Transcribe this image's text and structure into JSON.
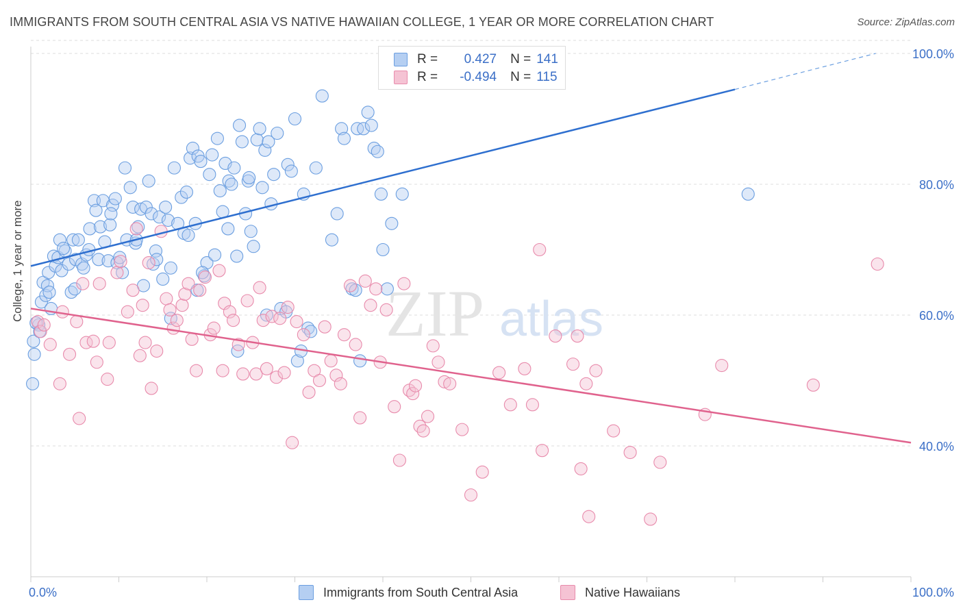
{
  "title": "IMMIGRANTS FROM SOUTH CENTRAL ASIA VS NATIVE HAWAIIAN COLLEGE, 1 YEAR OR MORE CORRELATION CHART",
  "source": "Source: ZipAtlas.com",
  "watermark": {
    "zip": "ZIP",
    "atlas": "atlas"
  },
  "colors": {
    "blue": "#6a9ee0",
    "blue_fill": "#b5cff2",
    "blue_line": "#2e6fcf",
    "pink": "#e88aab",
    "pink_fill": "#f5c3d4",
    "pink_line": "#e0628d",
    "tick_label": "#3b6fc7",
    "grid": "#dddddd"
  },
  "legend": {
    "rows": [
      {
        "r_label": "R =",
        "r_value": "0.427",
        "n_label": "N =",
        "n_value": "141"
      },
      {
        "r_label": "R =",
        "r_value": "-0.494",
        "n_label": "N =",
        "n_value": "115"
      }
    ],
    "placement": "top-center"
  },
  "bottom_legend": [
    "Immigrants from South Central Asia",
    "Native Hawaiians"
  ],
  "chart_data": {
    "type": "scatter",
    "title": "IMMIGRANTS FROM SOUTH CENTRAL ASIA VS NATIVE HAWAIIAN COLLEGE, 1 YEAR OR MORE CORRELATION CHART",
    "xlabel": "",
    "ylabel": "College, 1 year or more",
    "xlim": [
      0,
      100
    ],
    "ylim": [
      20,
      100
    ],
    "x_tick_labels": [
      "0.0%",
      "100.0%"
    ],
    "y_ticks": [
      40,
      60,
      80,
      100
    ],
    "y_tick_labels": [
      "40.0%",
      "60.0%",
      "80.0%",
      "100.0%"
    ],
    "grid": true,
    "series": [
      {
        "name": "Immigrants from South Central Asia",
        "color": "#6a9ee0",
        "trend": {
          "x0": 0,
          "y0": 67.5,
          "x1": 80,
          "y1": 94.5,
          "dashed_to_x": 96,
          "dashed_to_y": 100
        },
        "points": [
          [
            0.2,
            49.5
          ],
          [
            0.3,
            56
          ],
          [
            0.4,
            54
          ],
          [
            0.9,
            58.5
          ],
          [
            1.2,
            62
          ],
          [
            1.4,
            65
          ],
          [
            1.7,
            63
          ],
          [
            1.9,
            64.5
          ],
          [
            2.0,
            66.5
          ],
          [
            2.1,
            63.5
          ],
          [
            2.3,
            61
          ],
          [
            2.6,
            69
          ],
          [
            2.8,
            67.5
          ],
          [
            3.1,
            68.8
          ],
          [
            3.3,
            71.5
          ],
          [
            3.5,
            66.8
          ],
          [
            3.9,
            69.8
          ],
          [
            4.3,
            67.8
          ],
          [
            4.6,
            63.5
          ],
          [
            4.8,
            71.5
          ],
          [
            5.1,
            68.5
          ],
          [
            5.4,
            71.5
          ],
          [
            5.8,
            67.8
          ],
          [
            6.0,
            67.2
          ],
          [
            6.3,
            69.2
          ],
          [
            6.7,
            73.2
          ],
          [
            7.2,
            77.5
          ],
          [
            7.4,
            76
          ],
          [
            7.7,
            68.5
          ],
          [
            7.9,
            73.5
          ],
          [
            8.2,
            77.5
          ],
          [
            8.4,
            71.2
          ],
          [
            8.8,
            68.3
          ],
          [
            9.0,
            73.8
          ],
          [
            9.3,
            76.8
          ],
          [
            9.6,
            77.8
          ],
          [
            9.8,
            68
          ],
          [
            10.1,
            68.8
          ],
          [
            10.4,
            66.5
          ],
          [
            10.7,
            82.5
          ],
          [
            10.9,
            71.5
          ],
          [
            11.3,
            79.5
          ],
          [
            11.6,
            76.5
          ],
          [
            11.9,
            71
          ],
          [
            12.2,
            73.5
          ],
          [
            12.5,
            76.2
          ],
          [
            12.8,
            64.5
          ],
          [
            13.1,
            76.5
          ],
          [
            13.4,
            80.5
          ],
          [
            13.7,
            75.5
          ],
          [
            13.9,
            67.8
          ],
          [
            14.2,
            69.8
          ],
          [
            14.6,
            75
          ],
          [
            15.0,
            65.5
          ],
          [
            15.3,
            76.5
          ],
          [
            15.6,
            74.5
          ],
          [
            15.9,
            67.2
          ],
          [
            16.3,
            82.5
          ],
          [
            16.7,
            74
          ],
          [
            17.1,
            78
          ],
          [
            17.4,
            72.5
          ],
          [
            17.7,
            78.8
          ],
          [
            18.1,
            84
          ],
          [
            18.4,
            85.5
          ],
          [
            18.7,
            74
          ],
          [
            19.0,
            84.3
          ],
          [
            19.3,
            83.5
          ],
          [
            19.7,
            66
          ],
          [
            20.0,
            68
          ],
          [
            20.3,
            81.5
          ],
          [
            20.6,
            84.5
          ],
          [
            20.9,
            69.2
          ],
          [
            21.2,
            87
          ],
          [
            21.5,
            79
          ],
          [
            21.8,
            75.8
          ],
          [
            22.1,
            83.2
          ],
          [
            22.5,
            80.5
          ],
          [
            22.8,
            80
          ],
          [
            23.1,
            82.5
          ],
          [
            23.4,
            69
          ],
          [
            23.7,
            89
          ],
          [
            24.0,
            86.5
          ],
          [
            24.4,
            75.5
          ],
          [
            24.7,
            80.5
          ],
          [
            25.0,
            72.8
          ],
          [
            25.3,
            70.5
          ],
          [
            25.7,
            86.8
          ],
          [
            26.0,
            88.5
          ],
          [
            26.3,
            79.5
          ],
          [
            26.6,
            85.2
          ],
          [
            27.0,
            86.5
          ],
          [
            27.3,
            77
          ],
          [
            27.6,
            81.5
          ],
          [
            28.0,
            87.8
          ],
          [
            28.4,
            61
          ],
          [
            29.2,
            83
          ],
          [
            29.6,
            82
          ],
          [
            30.0,
            90
          ],
          [
            30.3,
            53
          ],
          [
            30.7,
            54.5
          ],
          [
            31.0,
            78.5
          ],
          [
            31.5,
            58
          ],
          [
            32.4,
            82.5
          ],
          [
            33.1,
            93.5
          ],
          [
            34.2,
            71.5
          ],
          [
            35.3,
            88.5
          ],
          [
            35.6,
            87
          ],
          [
            36.5,
            64
          ],
          [
            37.1,
            88.5
          ],
          [
            37.4,
            53
          ],
          [
            37.8,
            88.5
          ],
          [
            38.3,
            91
          ],
          [
            38.7,
            89
          ],
          [
            39.0,
            85.5
          ],
          [
            39.4,
            85
          ],
          [
            39.8,
            78.5
          ],
          [
            40.5,
            64
          ],
          [
            41.0,
            74
          ],
          [
            42.2,
            78.5
          ],
          [
            0.6,
            58.8
          ],
          [
            1.0,
            57.5
          ],
          [
            3.7,
            70.2
          ],
          [
            5.0,
            64
          ],
          [
            6.6,
            70
          ],
          [
            9.1,
            75.5
          ],
          [
            12.0,
            71.5
          ],
          [
            14.3,
            68.5
          ],
          [
            17.9,
            72.2
          ],
          [
            19.5,
            66.5
          ],
          [
            22.4,
            73.2
          ],
          [
            24.8,
            81
          ],
          [
            26.8,
            60
          ],
          [
            29.0,
            60.5
          ],
          [
            31.8,
            57.5
          ],
          [
            34.8,
            75.5
          ],
          [
            36.9,
            63.8
          ],
          [
            40.0,
            70
          ],
          [
            15.9,
            59.5
          ],
          [
            18.9,
            63.8
          ],
          [
            23.5,
            54.5
          ],
          [
            81.5,
            78.5
          ]
        ]
      },
      {
        "name": "Native Hawaiians",
        "color": "#e88aab",
        "trend": {
          "x0": 0,
          "y0": 61,
          "x1": 100,
          "y1": 40.5
        },
        "points": [
          [
            0.8,
            59
          ],
          [
            1.1,
            57.5
          ],
          [
            2.2,
            55.5
          ],
          [
            3.3,
            49.5
          ],
          [
            3.6,
            60.5
          ],
          [
            4.4,
            54
          ],
          [
            5.2,
            59
          ],
          [
            5.5,
            44.2
          ],
          [
            5.9,
            64.8
          ],
          [
            6.3,
            55.8
          ],
          [
            7.1,
            56
          ],
          [
            7.5,
            52.8
          ],
          [
            7.8,
            64.8
          ],
          [
            8.7,
            50.2
          ],
          [
            8.9,
            55.8
          ],
          [
            9.8,
            66.5
          ],
          [
            10.2,
            68.2
          ],
          [
            11.0,
            60.5
          ],
          [
            11.6,
            63.8
          ],
          [
            12.0,
            73.2
          ],
          [
            12.4,
            53.8
          ],
          [
            12.7,
            61.5
          ],
          [
            13.0,
            55.8
          ],
          [
            13.4,
            68
          ],
          [
            13.7,
            48.8
          ],
          [
            14.3,
            54.5
          ],
          [
            14.8,
            72.8
          ],
          [
            15.4,
            62.5
          ],
          [
            15.8,
            60.8
          ],
          [
            16.2,
            58
          ],
          [
            16.6,
            59.2
          ],
          [
            17.2,
            61.5
          ],
          [
            17.5,
            63.2
          ],
          [
            17.9,
            64.8
          ],
          [
            18.3,
            56.3
          ],
          [
            18.8,
            51.5
          ],
          [
            19.2,
            63.8
          ],
          [
            19.8,
            65.8
          ],
          [
            20.4,
            57
          ],
          [
            20.8,
            58
          ],
          [
            21.4,
            66.8
          ],
          [
            21.8,
            51.5
          ],
          [
            22.0,
            61.8
          ],
          [
            22.6,
            60.5
          ],
          [
            23.0,
            59.2
          ],
          [
            23.6,
            55.5
          ],
          [
            24.1,
            51
          ],
          [
            24.6,
            62.2
          ],
          [
            25.2,
            55.8
          ],
          [
            25.6,
            51
          ],
          [
            26.0,
            64.2
          ],
          [
            26.4,
            59.2
          ],
          [
            26.8,
            51.8
          ],
          [
            27.4,
            59.8
          ],
          [
            27.9,
            50.5
          ],
          [
            28.3,
            59.5
          ],
          [
            28.8,
            51.2
          ],
          [
            29.2,
            61.2
          ],
          [
            29.7,
            40.5
          ],
          [
            30.2,
            59
          ],
          [
            31.0,
            57
          ],
          [
            31.6,
            48.2
          ],
          [
            32.2,
            51.5
          ],
          [
            32.8,
            50
          ],
          [
            33.4,
            58.2
          ],
          [
            34.1,
            53
          ],
          [
            34.7,
            50.8
          ],
          [
            35.2,
            49.5
          ],
          [
            35.6,
            57
          ],
          [
            36.3,
            64.5
          ],
          [
            36.9,
            55.5
          ],
          [
            37.4,
            44.3
          ],
          [
            38.0,
            65.2
          ],
          [
            38.6,
            61.5
          ],
          [
            39.2,
            64
          ],
          [
            39.7,
            52.8
          ],
          [
            40.4,
            60.8
          ],
          [
            41.3,
            46
          ],
          [
            41.9,
            37.8
          ],
          [
            42.4,
            64.8
          ],
          [
            43.0,
            48.5
          ],
          [
            43.4,
            48
          ],
          [
            43.7,
            49.2
          ],
          [
            44.2,
            43
          ],
          [
            44.6,
            42.3
          ],
          [
            45.1,
            44.5
          ],
          [
            45.7,
            55.3
          ],
          [
            46.3,
            52.8
          ],
          [
            47.0,
            49.8
          ],
          [
            47.6,
            49.5
          ],
          [
            49.0,
            42.5
          ],
          [
            50.0,
            32.5
          ],
          [
            51.3,
            36
          ],
          [
            53.2,
            51.2
          ],
          [
            54.5,
            46.3
          ],
          [
            56.1,
            51.8
          ],
          [
            57.0,
            46.3
          ],
          [
            57.8,
            70
          ],
          [
            58.1,
            39.3
          ],
          [
            59.6,
            56.8
          ],
          [
            61.6,
            52.5
          ],
          [
            62.1,
            56.8
          ],
          [
            62.5,
            36.5
          ],
          [
            63.1,
            49.5
          ],
          [
            63.4,
            29.2
          ],
          [
            64.2,
            51.5
          ],
          [
            66.2,
            42.3
          ],
          [
            68.1,
            39
          ],
          [
            70.4,
            28.8
          ],
          [
            71.5,
            37.5
          ],
          [
            76.6,
            44.8
          ],
          [
            78.5,
            52.3
          ],
          [
            88.9,
            49.3
          ],
          [
            96.2,
            67.8
          ],
          [
            1.5,
            58.5
          ]
        ]
      }
    ]
  }
}
